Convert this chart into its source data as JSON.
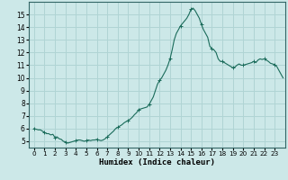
{
  "title": "",
  "xlabel": "Humidex (Indice chaleur)",
  "ylabel": "",
  "background_color": "#cce8e8",
  "grid_color": "#b0d4d4",
  "line_color": "#1a6b5a",
  "xlim": [
    -0.5,
    24
  ],
  "ylim": [
    4.5,
    16.0
  ],
  "xticks": [
    0,
    1,
    2,
    3,
    4,
    5,
    6,
    7,
    8,
    9,
    10,
    11,
    12,
    13,
    14,
    15,
    16,
    17,
    18,
    19,
    20,
    21,
    22,
    23
  ],
  "yticks": [
    5,
    6,
    7,
    8,
    9,
    10,
    11,
    12,
    13,
    14,
    15
  ],
  "x": [
    0,
    0.2,
    0.4,
    0.6,
    0.8,
    1.0,
    1.2,
    1.4,
    1.6,
    1.8,
    2.0,
    2.2,
    2.4,
    2.6,
    2.8,
    3.0,
    3.2,
    3.4,
    3.6,
    3.8,
    4.0,
    4.2,
    4.4,
    4.6,
    4.8,
    5.0,
    5.2,
    5.4,
    5.6,
    5.8,
    6.0,
    6.2,
    6.4,
    6.6,
    6.8,
    7.0,
    7.2,
    7.4,
    7.6,
    7.8,
    8.0,
    8.2,
    8.4,
    8.6,
    8.8,
    9.0,
    9.2,
    9.4,
    9.6,
    9.8,
    10.0,
    10.2,
    10.4,
    10.6,
    10.8,
    11.0,
    11.2,
    11.4,
    11.6,
    11.8,
    12.0,
    12.2,
    12.4,
    12.6,
    12.8,
    13.0,
    13.2,
    13.4,
    13.6,
    13.8,
    14.0,
    14.2,
    14.4,
    14.6,
    14.8,
    15.0,
    15.2,
    15.4,
    15.6,
    15.8,
    16.0,
    16.2,
    16.4,
    16.6,
    16.8,
    17.0,
    17.2,
    17.4,
    17.6,
    17.8,
    18.0,
    18.2,
    18.4,
    18.6,
    18.8,
    19.0,
    19.2,
    19.4,
    19.6,
    19.8,
    20.0,
    20.2,
    20.4,
    20.6,
    20.8,
    21.0,
    21.2,
    21.4,
    21.6,
    21.8,
    22.0,
    22.2,
    22.4,
    22.6,
    22.8,
    23.0,
    23.2,
    23.4,
    23.6,
    23.8
  ],
  "y": [
    6.0,
    5.95,
    5.9,
    5.9,
    5.8,
    5.7,
    5.6,
    5.6,
    5.5,
    5.55,
    5.3,
    5.35,
    5.2,
    5.15,
    5.0,
    4.95,
    4.85,
    4.9,
    4.95,
    5.0,
    5.05,
    5.1,
    5.1,
    5.05,
    5.0,
    5.05,
    5.1,
    5.05,
    5.1,
    5.1,
    5.15,
    5.1,
    5.05,
    5.1,
    5.2,
    5.35,
    5.5,
    5.65,
    5.8,
    6.0,
    6.1,
    6.2,
    6.3,
    6.45,
    6.55,
    6.65,
    6.75,
    6.9,
    7.1,
    7.25,
    7.5,
    7.55,
    7.6,
    7.65,
    7.7,
    7.9,
    8.2,
    8.5,
    9.0,
    9.5,
    9.8,
    10.0,
    10.3,
    10.6,
    11.0,
    11.5,
    12.2,
    13.0,
    13.5,
    13.8,
    14.1,
    14.3,
    14.5,
    14.7,
    15.0,
    15.4,
    15.5,
    15.3,
    15.0,
    14.7,
    14.2,
    13.8,
    13.5,
    13.2,
    12.5,
    12.3,
    12.2,
    12.0,
    11.5,
    11.3,
    11.3,
    11.2,
    11.1,
    11.0,
    10.9,
    10.8,
    10.85,
    11.0,
    11.1,
    11.0,
    11.0,
    11.05,
    11.1,
    11.15,
    11.2,
    11.3,
    11.2,
    11.4,
    11.5,
    11.45,
    11.5,
    11.4,
    11.3,
    11.15,
    11.1,
    11.05,
    10.9,
    10.6,
    10.3,
    10.0
  ]
}
